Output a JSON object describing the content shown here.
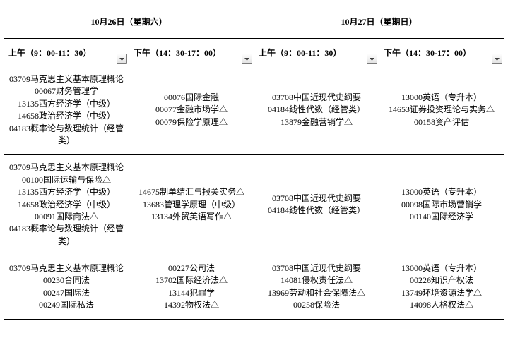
{
  "days": [
    {
      "label": "10月26日（星期六）"
    },
    {
      "label": "10月27日（星期日）"
    }
  ],
  "sessions": [
    {
      "label": "上午（9：00-11：30）"
    },
    {
      "label": "下午（14：30-17：00）"
    },
    {
      "label": "上午（9：00-11：30）"
    },
    {
      "label": "下午（14：30-17：00）"
    }
  ],
  "rows": [
    {
      "c0": [
        "03709马克思主义基本原理概论",
        "00067财务管理学",
        "13135西方经济学（中级）",
        "14658政治经济学（中级）",
        "04183概率论与数理统计（经管类）"
      ],
      "c1": [
        "00076国际金融",
        "00077金融市场学△",
        "00079保险学原理△"
      ],
      "c2": [
        "03708中国近现代史纲要",
        "04184线性代数（经管类）",
        "13879金融营销学△"
      ],
      "c3": [
        "13000英语（专升本）",
        "14653证券投资理论与实务△",
        "00158资产评估"
      ]
    },
    {
      "c0": [
        "03709马克思主义基本原理概论",
        "00100国际运输与保险△",
        "13135西方经济学（中级）",
        "14658政治经济学（中级）",
        "00091国际商法△",
        "04183概率论与数理统计（经管类）"
      ],
      "c1": [
        "14675制单结汇与报关实务△",
        "13683管理学原理（中级）",
        "13134外贸英语写作△"
      ],
      "c2": [
        "03708中国近现代史纲要",
        "04184线性代数（经管类）"
      ],
      "c3": [
        "13000英语（专升本）",
        "00098国际市场营销学",
        "00140国际经济学"
      ]
    },
    {
      "c0": [
        "03709马克思主义基本原理概论",
        "00230合同法",
        "00247国际法",
        "00249国际私法"
      ],
      "c1": [
        "00227公司法",
        "13702国际经济法△",
        "13144犯罪学",
        "14392物权法△"
      ],
      "c2": [
        "03708中国近现代史纲要",
        "14081侵权责任法△",
        "13969劳动和社会保障法△",
        "00258保险法"
      ],
      "c3": [
        "13000英语（专升本）",
        "00226知识产权法",
        "13749环境资源法学△",
        "14098人格权法△"
      ]
    }
  ]
}
